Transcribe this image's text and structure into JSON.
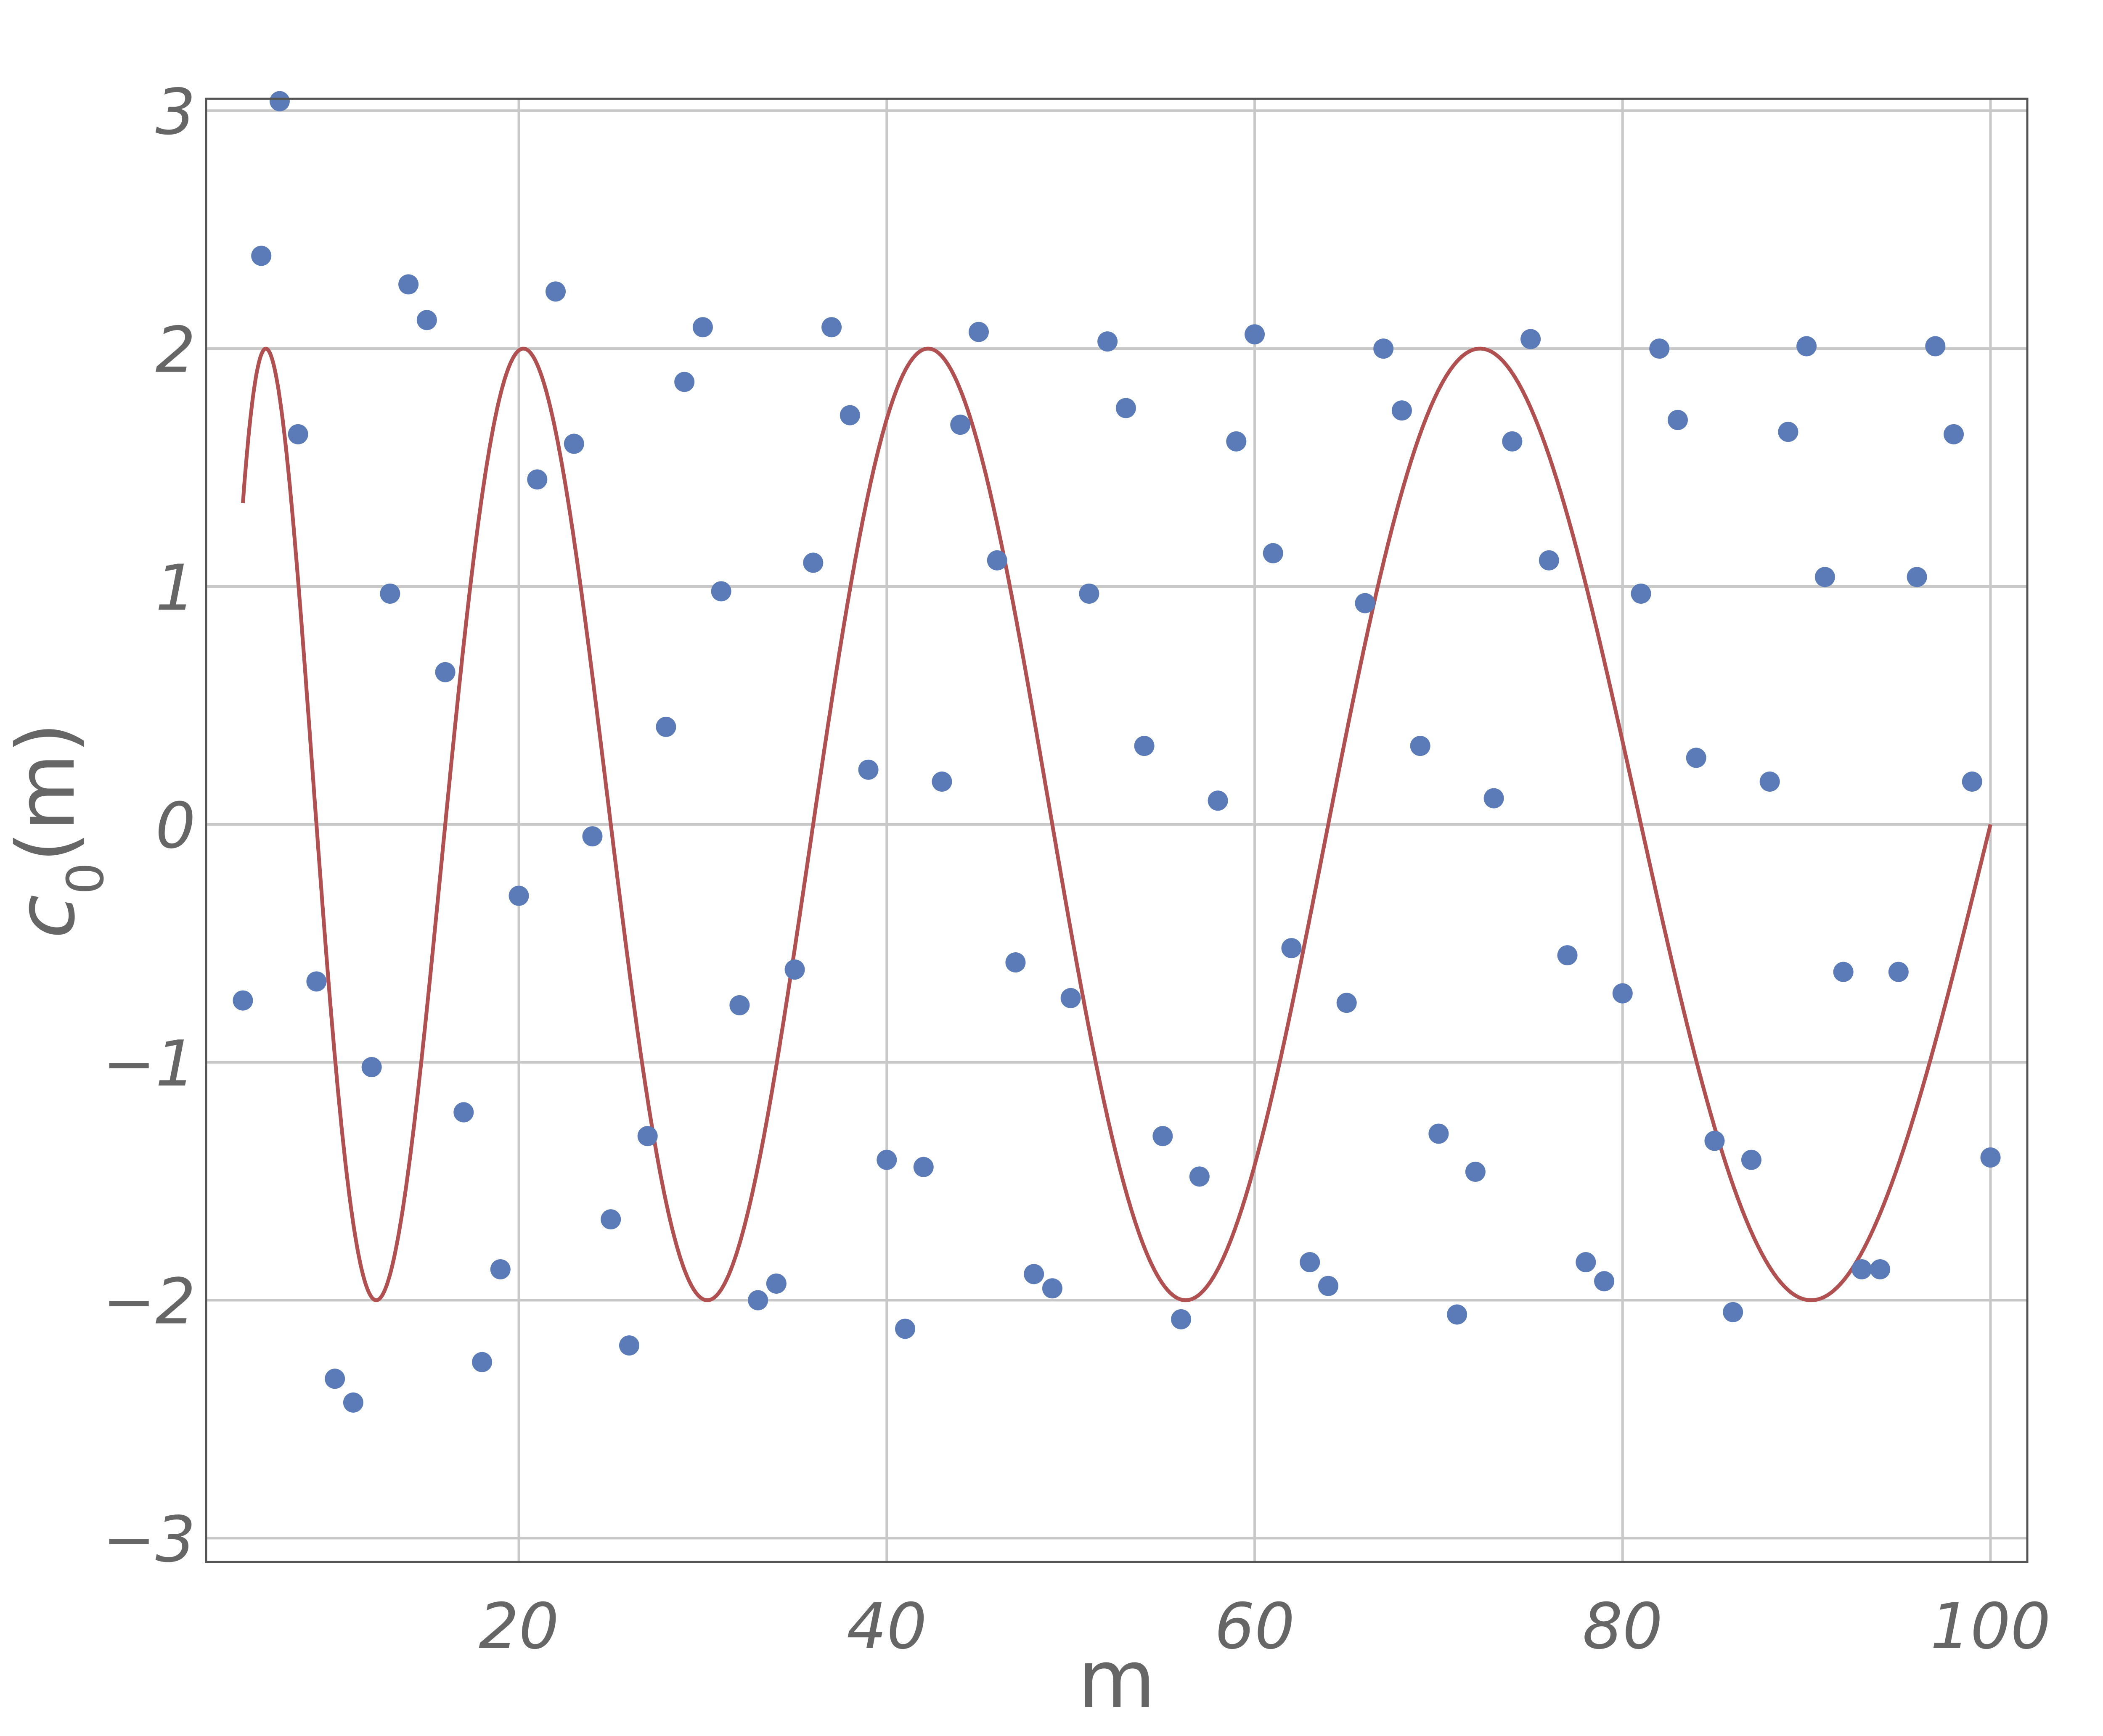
{
  "chart_data": {
    "type": "scatter",
    "title": "",
    "xlabel": "m",
    "ylabel_main": "c",
    "ylabel_sub": "0",
    "ylabel_tail": "(m)",
    "xlim": [
      3,
      102
    ],
    "ylim": [
      -3.1,
      3.05
    ],
    "xticks": [
      20,
      40,
      60,
      80,
      100
    ],
    "yticks": [
      -3,
      -2,
      -1,
      0,
      1,
      2,
      3
    ],
    "grid": true,
    "series": [
      {
        "kind": "points",
        "color": "#5b7bb8",
        "x": [
          5,
          6,
          7,
          8,
          9,
          10,
          11,
          12,
          13,
          14,
          15,
          16,
          17,
          18,
          19,
          20,
          21,
          22,
          23,
          24,
          25,
          26,
          27,
          28,
          29,
          30,
          31,
          32,
          33,
          34,
          35,
          36,
          37,
          38,
          39,
          40,
          41,
          42,
          43,
          44,
          45,
          46,
          47,
          48,
          49,
          50,
          51,
          52,
          53,
          54,
          55,
          56,
          57,
          58,
          59,
          60,
          61,
          62,
          63,
          64,
          65,
          66,
          67,
          68,
          69,
          70,
          71,
          72,
          73,
          74,
          75,
          76,
          77,
          78,
          79,
          80,
          81,
          82,
          83,
          84,
          85,
          86,
          87,
          88,
          89,
          90,
          91,
          92,
          93,
          94,
          95,
          96,
          97,
          98,
          99,
          100
        ],
        "y": [
          -0.74,
          2.39,
          3.04,
          1.64,
          -0.66,
          -2.33,
          -2.43,
          -1.02,
          0.97,
          2.27,
          2.12,
          0.64,
          -1.21,
          -2.26,
          -1.87,
          -0.3,
          1.45,
          2.24,
          1.6,
          -0.05,
          -1.66,
          -2.19,
          -1.31,
          0.41,
          1.86,
          2.09,
          0.98,
          -0.76,
          -2.0,
          -1.93,
          -0.61,
          1.1,
          2.09,
          1.72,
          0.23,
          -1.41,
          -2.12,
          -1.44,
          0.18,
          1.68,
          2.07,
          1.11,
          -0.58,
          -1.89,
          -1.95,
          -0.73,
          0.97,
          2.03,
          1.75,
          0.33,
          -1.31,
          -2.08,
          -1.48,
          0.1,
          1.61,
          2.06,
          1.14,
          -0.52,
          -1.84,
          -1.94,
          -0.75,
          0.93,
          2.0,
          1.74,
          0.33,
          -1.3,
          -2.06,
          -1.46,
          0.11,
          1.61,
          2.04,
          1.11,
          -0.55,
          -1.84,
          -1.92,
          -0.71,
          0.97,
          2.0,
          1.7,
          0.28,
          -1.33,
          -2.05,
          -1.41,
          0.18,
          1.65,
          2.01,
          1.04,
          -0.62,
          -1.87,
          -1.87,
          -0.62,
          1.04,
          2.01,
          1.64,
          0.18,
          -1.4
        ]
      },
      {
        "kind": "curve",
        "color": "#b05050",
        "amplitude": 2,
        "phase": 0.5,
        "x_start": 5,
        "x_end": 100
      }
    ]
  }
}
